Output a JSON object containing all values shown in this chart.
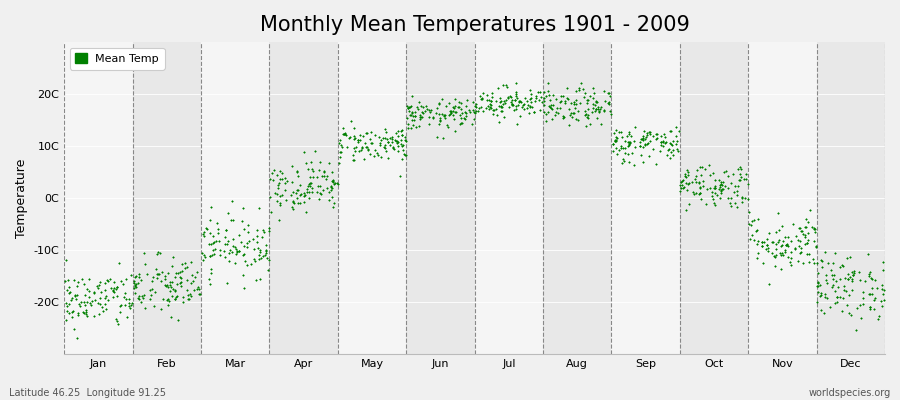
{
  "title": "Monthly Mean Temperatures 1901 - 2009",
  "ylabel": "Temperature",
  "bottom_left_label": "Latitude 46.25  Longitude 91.25",
  "bottom_right_label": "worldspecies.org",
  "legend_label": "Mean Temp",
  "marker_color": "#008000",
  "background_color": "#f0f0f0",
  "plot_bg_color": "#e8e8e8",
  "plot_bg_alt_color": "#f5f5f5",
  "ylim": [
    -30,
    30
  ],
  "yticks": [
    -20,
    -10,
    0,
    10,
    20
  ],
  "ytick_labels": [
    "-20C",
    "-10C",
    "0C",
    "10C",
    "20C"
  ],
  "months": [
    "Jan",
    "Feb",
    "Mar",
    "Apr",
    "May",
    "Jun",
    "Jul",
    "Aug",
    "Sep",
    "Oct",
    "Nov",
    "Dec"
  ],
  "title_fontsize": 15,
  "n_years": 109,
  "seed": 42,
  "mean_temps": [
    -19.5,
    -17.0,
    -9.0,
    2.5,
    10.5,
    16.0,
    18.5,
    17.5,
    10.5,
    2.5,
    -8.5,
    -17.0
  ],
  "std_temps": [
    2.8,
    3.0,
    3.0,
    2.5,
    1.8,
    1.5,
    1.5,
    1.8,
    1.8,
    2.2,
    2.8,
    3.2
  ]
}
